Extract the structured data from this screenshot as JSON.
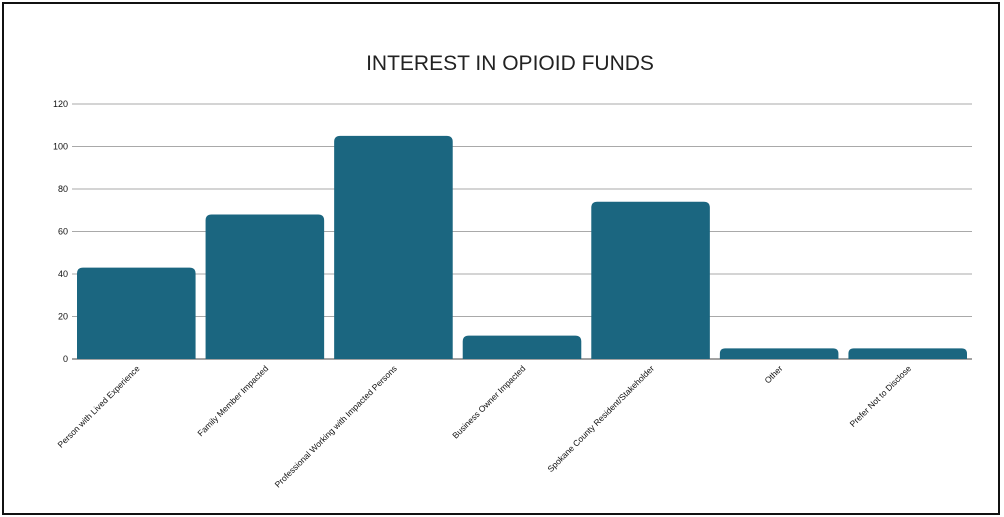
{
  "chart_data": {
    "type": "bar",
    "title": "INTEREST IN OPIOID FUNDS",
    "categories": [
      "Person with Lived Experience",
      "Family Member Impacted",
      "Professional Working with Impacted Persons",
      "Business Owner Impacted",
      "Spokane County Resident/Stakeholder",
      "Other",
      "Prefer Not to Disclose"
    ],
    "values": [
      43,
      68,
      105,
      11,
      74,
      5,
      5
    ],
    "ylim": [
      0,
      120
    ],
    "yticks": [
      0,
      20,
      40,
      60,
      80,
      100,
      120
    ],
    "grid": true,
    "bar_color": "#1b6680"
  }
}
